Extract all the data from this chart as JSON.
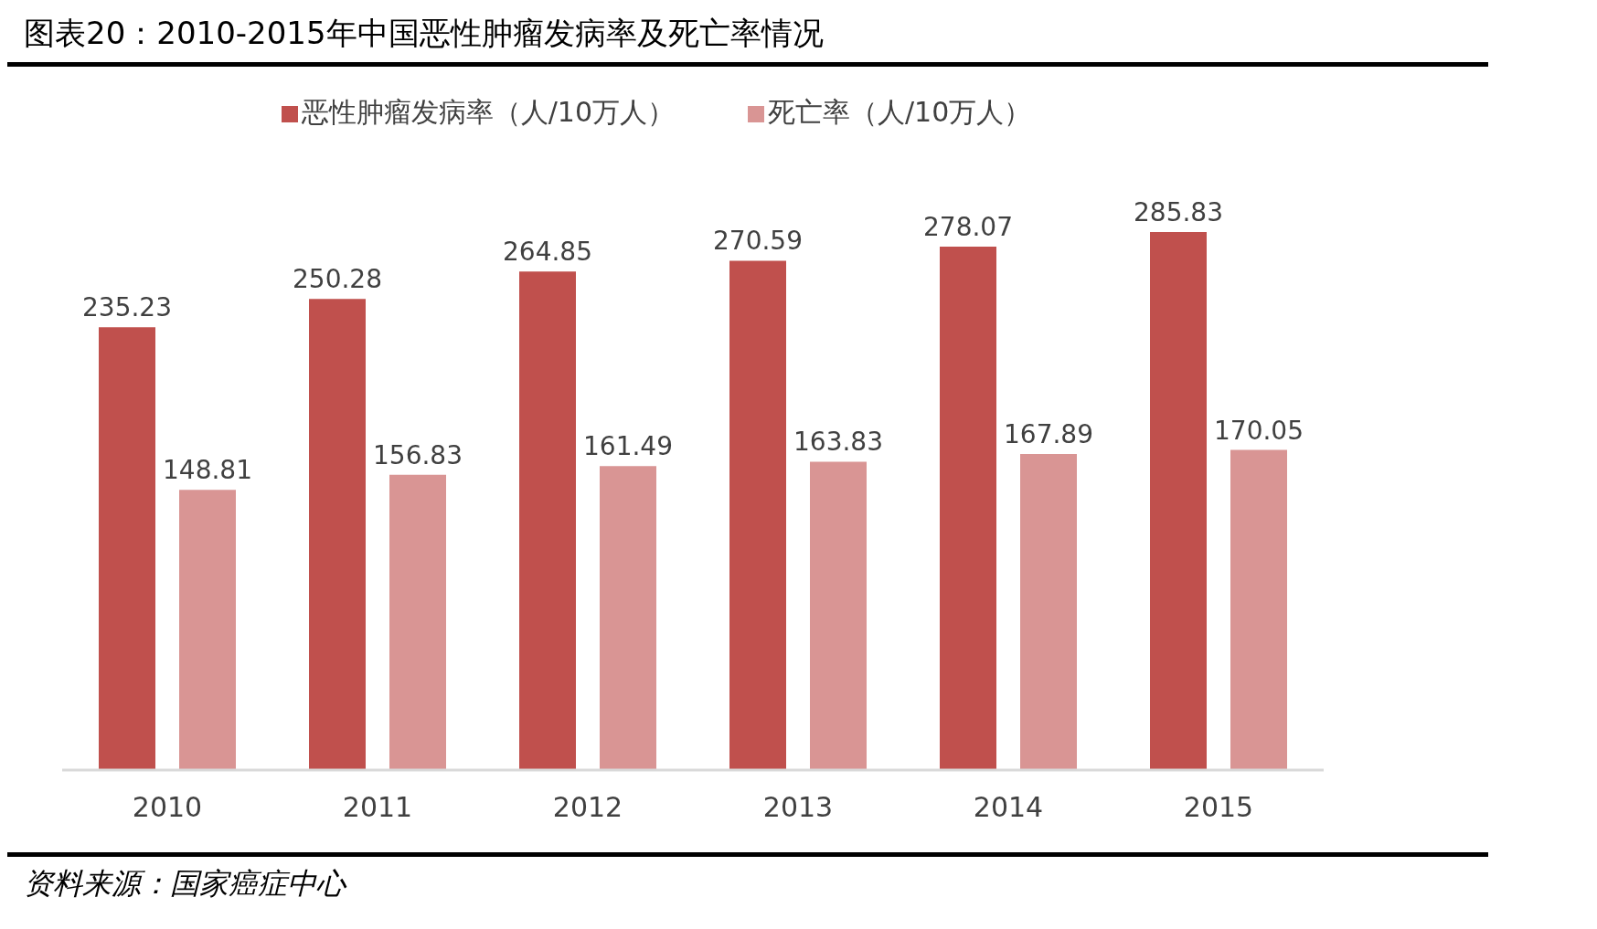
{
  "chart_data": {
    "type": "bar",
    "title": "图表20：2010-2015年中国恶性肿瘤发病率及死亡率情况",
    "categories": [
      "2010",
      "2011",
      "2012",
      "2013",
      "2014",
      "2015"
    ],
    "series": [
      {
        "name": "恶性肿瘤发病率（人/10万人）",
        "color": "#c0504d",
        "values": [
          235.23,
          250.28,
          264.85,
          270.59,
          278.07,
          285.83
        ]
      },
      {
        "name": "死亡率（人/10万人）",
        "color": "#d99594",
        "values": [
          148.81,
          156.83,
          161.49,
          163.83,
          167.89,
          170.05
        ]
      }
    ],
    "data_labels": true,
    "legend": "top",
    "annotations": [
      "资料来源：国家癌症中心"
    ]
  }
}
